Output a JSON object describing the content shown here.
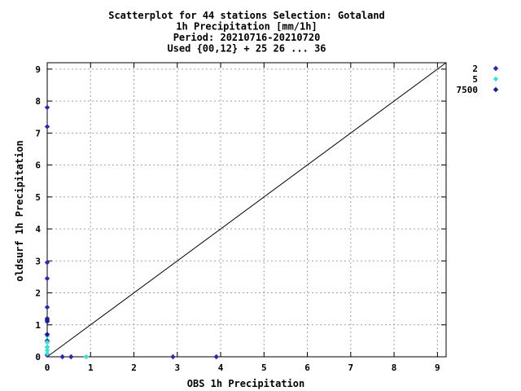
{
  "chart_data": {
    "type": "scatter",
    "title_lines": [
      "Scatterplot for   44 stations Selection: Gotaland",
      "1h Precipitation [mm/1h]",
      "Period: 20210716-20210720",
      "Used {00,12} + 25 26 ... 36"
    ],
    "xlabel": "OBS 1h Precipitation",
    "ylabel": "oldsurf 1h Precipitation",
    "xlim": [
      0,
      9.2
    ],
    "ylim": [
      0,
      9.2
    ],
    "xticks": [
      0,
      1,
      2,
      3,
      4,
      5,
      6,
      7,
      8,
      9
    ],
    "yticks": [
      0,
      1,
      2,
      3,
      4,
      5,
      6,
      7,
      8,
      9
    ],
    "grid": true,
    "legend_position": "right",
    "reference_line": "y=x",
    "series": [
      {
        "name": "2",
        "color": "#2a2aa8",
        "points": [
          [
            0,
            7.8
          ],
          [
            0,
            7.2
          ],
          [
            0,
            2.95
          ],
          [
            0,
            2.45
          ],
          [
            0,
            1.55
          ],
          [
            0,
            1.2
          ],
          [
            0,
            1.1
          ],
          [
            0,
            0.7
          ],
          [
            0,
            0.5
          ],
          [
            0,
            0.3
          ],
          [
            0,
            0.05
          ],
          [
            0.35,
            0
          ],
          [
            0.55,
            0
          ],
          [
            2.9,
            0
          ],
          [
            3.9,
            0
          ]
        ]
      },
      {
        "name": "5",
        "color": "#40e0d0",
        "points": [
          [
            0,
            0.65
          ],
          [
            0,
            0.45
          ],
          [
            0,
            0.3
          ],
          [
            0,
            0.2
          ],
          [
            0,
            0.1
          ],
          [
            0.9,
            0
          ]
        ]
      },
      {
        "name": "7500",
        "color": "#1c1c8a",
        "points": [
          [
            0,
            1.15
          ],
          [
            0,
            0.7
          ]
        ]
      }
    ]
  }
}
